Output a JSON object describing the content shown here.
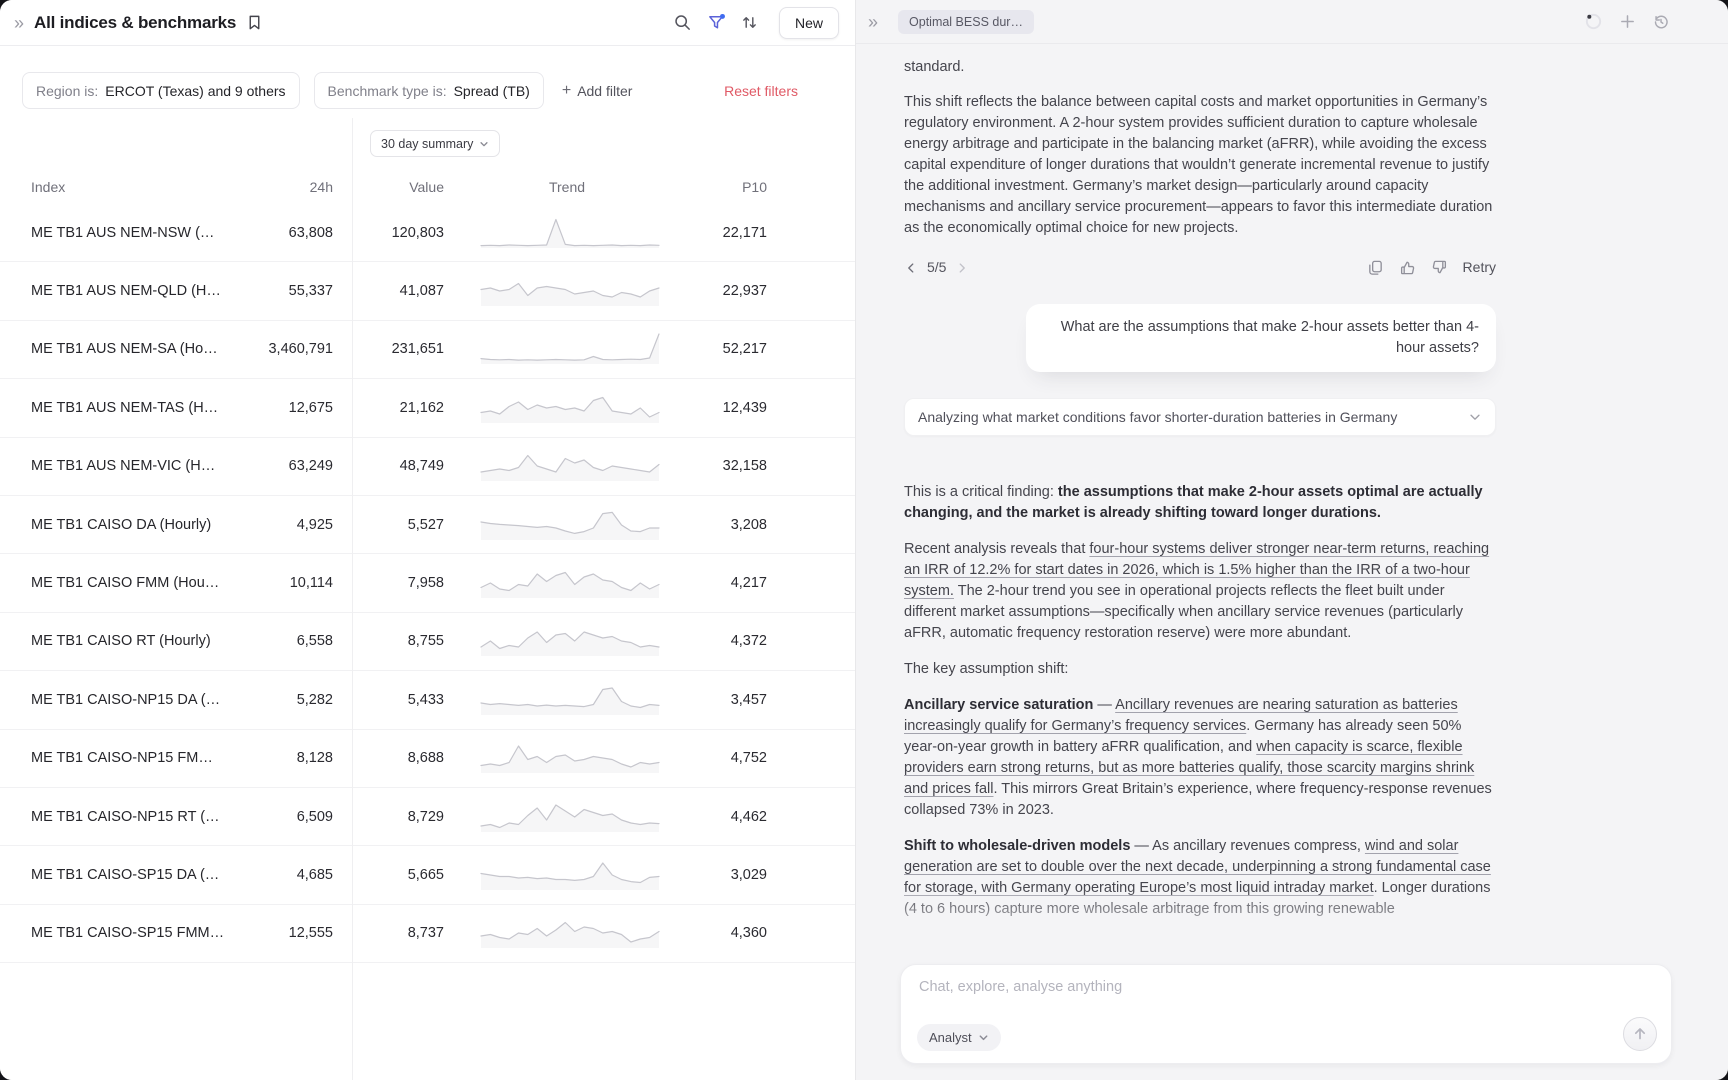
{
  "left_panel": {
    "header": {
      "title": "All indices & benchmarks",
      "new_label": "New"
    },
    "filters": {
      "region": {
        "label": "Region is:",
        "value": "ERCOT (Texas) and 9 others"
      },
      "benchmark": {
        "label": "Benchmark type is:",
        "value": "Spread (TB)"
      },
      "add_label": "Add filter",
      "reset_label": "Reset filters"
    },
    "summary_label": "30 day summary",
    "table": {
      "columns": [
        "Index",
        "24h",
        "Value",
        "Trend",
        "P10"
      ],
      "rows": [
        {
          "index": "ME TB1 AUS NEM-NSW (…",
          "h24": "63,808",
          "value": "120,803",
          "p10": "22,171",
          "trend": [
            0.08,
            0.09,
            0.08,
            0.1,
            0.09,
            0.08,
            0.09,
            0.1,
            0.95,
            0.12,
            0.08,
            0.09,
            0.08,
            0.09,
            0.1,
            0.08,
            0.09,
            0.08,
            0.1,
            0.09
          ]
        },
        {
          "index": "ME TB1 AUS NEM-QLD (H…",
          "h24": "55,337",
          "value": "41,087",
          "p10": "22,937",
          "trend": [
            0.55,
            0.6,
            0.5,
            0.55,
            0.75,
            0.35,
            0.6,
            0.65,
            0.6,
            0.55,
            0.4,
            0.45,
            0.5,
            0.35,
            0.3,
            0.45,
            0.4,
            0.3,
            0.5,
            0.6
          ]
        },
        {
          "index": "ME TB1 AUS NEM-SA (Ho…",
          "h24": "3,460,791",
          "value": "231,651",
          "p10": "52,217",
          "trend": [
            0.18,
            0.15,
            0.14,
            0.15,
            0.13,
            0.14,
            0.13,
            0.14,
            0.15,
            0.14,
            0.13,
            0.14,
            0.25,
            0.15,
            0.14,
            0.15,
            0.16,
            0.15,
            0.2,
            1.0
          ]
        },
        {
          "index": "ME TB1 AUS NEM-TAS (H…",
          "h24": "12,675",
          "value": "21,162",
          "p10": "12,439",
          "trend": [
            0.35,
            0.4,
            0.3,
            0.55,
            0.7,
            0.45,
            0.6,
            0.5,
            0.55,
            0.45,
            0.5,
            0.4,
            0.75,
            0.85,
            0.4,
            0.35,
            0.3,
            0.5,
            0.2,
            0.35
          ]
        },
        {
          "index": "ME TB1 AUS NEM-VIC (H…",
          "h24": "63,249",
          "value": "48,749",
          "p10": "32,158",
          "trend": [
            0.3,
            0.35,
            0.4,
            0.35,
            0.45,
            0.85,
            0.5,
            0.4,
            0.3,
            0.75,
            0.6,
            0.7,
            0.45,
            0.35,
            0.5,
            0.45,
            0.4,
            0.35,
            0.3,
            0.55
          ]
        },
        {
          "index": "ME TB1 CAISO DA (Hourly)",
          "h24": "4,925",
          "value": "5,527",
          "p10": "3,208",
          "trend": [
            0.6,
            0.55,
            0.52,
            0.5,
            0.48,
            0.45,
            0.42,
            0.45,
            0.4,
            0.3,
            0.22,
            0.28,
            0.4,
            0.88,
            0.92,
            0.5,
            0.3,
            0.28,
            0.4,
            0.4
          ]
        },
        {
          "index": "ME TB1 CAISO FMM (Hou…",
          "h24": "10,114",
          "value": "7,958",
          "p10": "4,217",
          "trend": [
            0.35,
            0.5,
            0.3,
            0.25,
            0.45,
            0.4,
            0.8,
            0.55,
            0.75,
            0.85,
            0.45,
            0.7,
            0.8,
            0.6,
            0.55,
            0.35,
            0.25,
            0.5,
            0.3,
            0.45
          ]
        },
        {
          "index": "ME TB1 CAISO RT (Hourly)",
          "h24": "6,558",
          "value": "8,755",
          "p10": "4,372",
          "trend": [
            0.3,
            0.5,
            0.25,
            0.35,
            0.3,
            0.6,
            0.8,
            0.45,
            0.7,
            0.75,
            0.5,
            0.8,
            0.7,
            0.6,
            0.65,
            0.5,
            0.45,
            0.3,
            0.35,
            0.3
          ]
        },
        {
          "index": "ME TB1 CAISO-NP15 DA (…",
          "h24": "5,282",
          "value": "5,433",
          "p10": "3,457",
          "trend": [
            0.4,
            0.35,
            0.38,
            0.35,
            0.32,
            0.35,
            0.3,
            0.33,
            0.3,
            0.32,
            0.3,
            0.28,
            0.35,
            0.85,
            0.9,
            0.45,
            0.3,
            0.25,
            0.35,
            0.32
          ]
        },
        {
          "index": "ME TB1 CAISO-NP15 FM…",
          "h24": "8,128",
          "value": "8,688",
          "p10": "4,752",
          "trend": [
            0.25,
            0.3,
            0.25,
            0.35,
            0.9,
            0.45,
            0.55,
            0.35,
            0.55,
            0.6,
            0.4,
            0.45,
            0.55,
            0.5,
            0.45,
            0.3,
            0.2,
            0.35,
            0.3,
            0.35
          ]
        },
        {
          "index": "ME TB1 CAISO-NP15 RT (…",
          "h24": "6,509",
          "value": "8,729",
          "p10": "4,462",
          "trend": [
            0.2,
            0.25,
            0.15,
            0.3,
            0.25,
            0.55,
            0.8,
            0.4,
            0.9,
            0.7,
            0.5,
            0.75,
            0.65,
            0.55,
            0.6,
            0.4,
            0.3,
            0.25,
            0.3,
            0.28
          ]
        },
        {
          "index": "ME TB1 CAISO-SP15 DA (…",
          "h24": "4,685",
          "value": "5,665",
          "p10": "3,029",
          "trend": [
            0.55,
            0.5,
            0.45,
            0.45,
            0.4,
            0.42,
            0.38,
            0.4,
            0.35,
            0.35,
            0.32,
            0.35,
            0.45,
            0.9,
            0.5,
            0.35,
            0.28,
            0.25,
            0.42,
            0.45
          ]
        },
        {
          "index": "ME TB1 CAISO-SP15 FMM…",
          "h24": "12,555",
          "value": "8,737",
          "p10": "4,360",
          "trend": [
            0.4,
            0.45,
            0.35,
            0.3,
            0.5,
            0.45,
            0.65,
            0.4,
            0.6,
            0.85,
            0.55,
            0.7,
            0.65,
            0.5,
            0.55,
            0.45,
            0.2,
            0.3,
            0.35,
            0.55
          ]
        }
      ]
    }
  },
  "right_panel": {
    "tab": "Optimal BESS dur…",
    "assistant": {
      "p1": "standard.",
      "p2": "This shift reflects the balance between capital costs and market opportunities in Germany’s regulatory environment. A 2-hour system provides sufficient duration to capture wholesale energy arbitrage and participate in the balancing market (aFRR), while avoiding the excess capital expenditure of longer durations that wouldn’t generate incremental revenue to justify the additional investment. Germany’s market design—particularly around capacity mechanisms and ancillary service procurement—appears to favor this intermediate duration as the economically optimal choice for new projects."
    },
    "pagination": {
      "label": "5/5"
    },
    "actions": {
      "retry_label": "Retry"
    },
    "user_question": "What are the assumptions that make 2-hour assets better than 4-hour assets?",
    "analyzing_label": "Analyzing what market conditions favor shorter-duration batteries in Germany",
    "answer": {
      "paragraphs": [
        [
          {
            "t": "This is a critical finding: "
          },
          {
            "t": "the assumptions that make 2-hour assets optimal are actually changing, and the market is already shifting toward longer durations.",
            "b": true
          }
        ],
        [
          {
            "t": "Recent analysis reveals that "
          },
          {
            "t": "four-hour systems deliver stronger near-term returns, reaching an IRR of 12.2% for start dates in 2026, which is 1.5% higher than the IRR of a two-hour system.",
            "u": true
          },
          {
            "t": " The 2-hour trend you see in operational projects reflects the fleet built under different market assumptions—specifically when ancillary service revenues (particularly aFRR, automatic frequency restoration reserve) were more abundant."
          }
        ],
        [
          {
            "t": "The key assumption shift:"
          }
        ],
        [
          {
            "t": "Ancillary service saturation",
            "b": true
          },
          {
            "t": " — "
          },
          {
            "t": "Ancillary revenues are nearing saturation as batteries increasingly qualify for Germany’s frequency services",
            "u": true
          },
          {
            "t": ". Germany has already seen 50% year-on-year growth in battery aFRR qualification, and "
          },
          {
            "t": "when capacity is scarce, flexible providers earn strong returns, but as more batteries qualify, those scarcity margins shrink and prices fall",
            "u": true
          },
          {
            "t": ". This mirrors Great Britain’s experience, where frequency-response revenues collapsed 73% in 2023."
          }
        ],
        [
          {
            "t": "Shift to wholesale-driven models",
            "b": true
          },
          {
            "t": " — As ancillary revenues compress, "
          },
          {
            "t": "wind and solar generation are set to double over the next decade, underpinning a strong fundamental case for storage, with Germany operating Europe’s most liquid intraday market",
            "u": true
          },
          {
            "t": ". Longer durations (4 to 6 hours) capture more wholesale arbitrage from this growing renewable"
          }
        ]
      ]
    },
    "composer": {
      "placeholder": "Chat, explore, analyse anything",
      "mode": "Analyst"
    }
  },
  "colors": {
    "accent_red": "#e05a66",
    "filter_indigo": "#5b62d8",
    "badge_blue": "#3f6bf0",
    "sparkline": "#c6c6cd"
  }
}
